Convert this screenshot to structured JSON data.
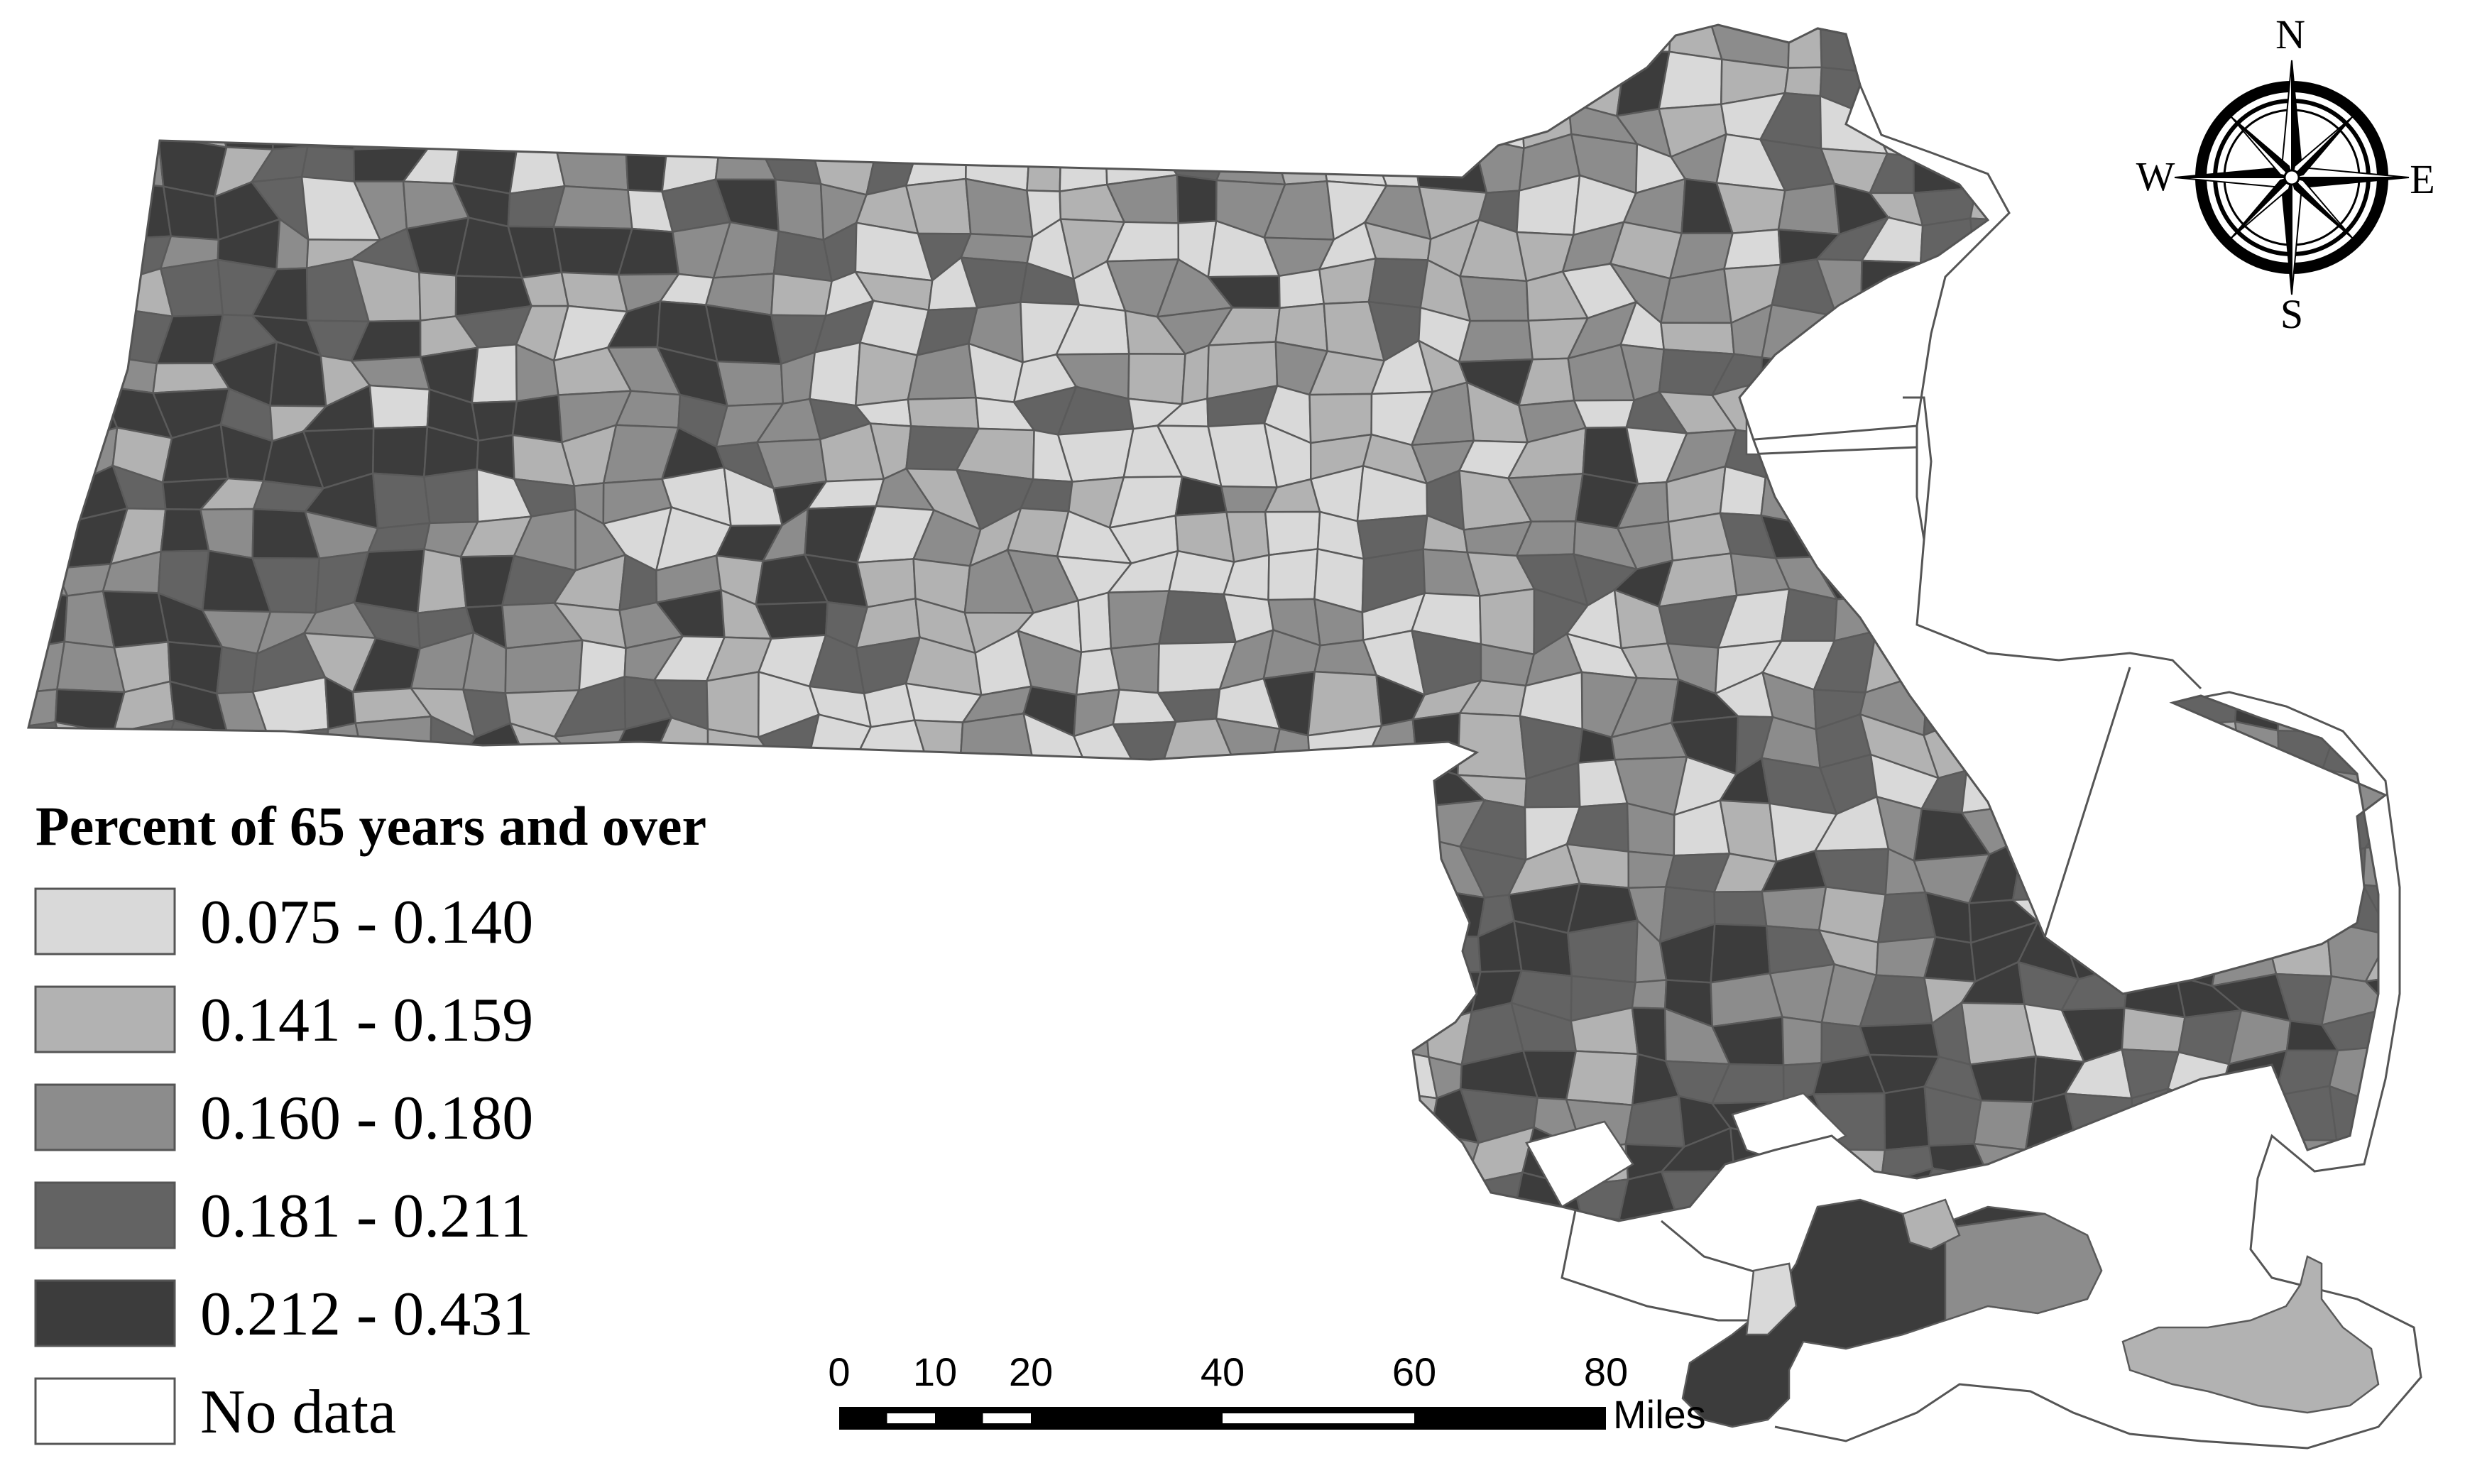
{
  "colors": {
    "class1": "#d9d9d9",
    "class2": "#b2b2b2",
    "class3": "#8c8c8c",
    "class4": "#636363",
    "class5": "#3c3c3c",
    "no_data": "#ffffff",
    "outline": "#555555"
  },
  "legend": {
    "title": "Percent of 65 years and over",
    "items": [
      {
        "label": "0.075 - 0.140",
        "color": "#d9d9d9"
      },
      {
        "label": "0.141 - 0.159",
        "color": "#b2b2b2"
      },
      {
        "label": "0.160 - 0.180",
        "color": "#8c8c8c"
      },
      {
        "label": "0.181 - 0.211",
        "color": "#636363"
      },
      {
        "label": "0.212 - 0.431",
        "color": "#3c3c3c"
      },
      {
        "label": "No data",
        "color": "#ffffff"
      }
    ]
  },
  "compass": {
    "north": "N",
    "south": "S",
    "east": "E",
    "west": "W",
    "icon": "compass-rose-icon"
  },
  "scale_bar": {
    "ticks": [
      "0",
      "10",
      "20",
      "40",
      "60",
      "80"
    ],
    "unit": "Miles"
  }
}
